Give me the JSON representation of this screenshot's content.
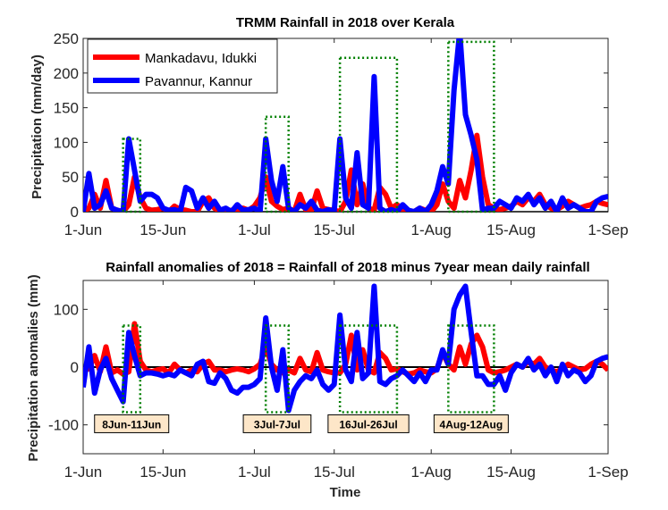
{
  "chart_data": [
    {
      "type": "line",
      "title": "TRMM Rainfall in 2018 over Kerala",
      "xlabel": "",
      "ylabel": "Precipitation (mm/day)",
      "x_start_day": 0,
      "x_end_day": 92,
      "xticks": [
        {
          "day": 0,
          "label": "1-Jun"
        },
        {
          "day": 14,
          "label": "15-Jun"
        },
        {
          "day": 30,
          "label": "1-Jul"
        },
        {
          "day": 44,
          "label": "15-Jul"
        },
        {
          "day": 61,
          "label": "1-Aug"
        },
        {
          "day": 75,
          "label": "15-Aug"
        },
        {
          "day": 92,
          "label": "1-Sep"
        }
      ],
      "yticks": [
        0,
        50,
        100,
        150,
        200,
        250
      ],
      "ylim": [
        0,
        250
      ],
      "legend": "top-left",
      "series": [
        {
          "name": "Mankadavu, Idukki",
          "color": "#ff0000",
          "values": [
            0,
            5,
            25,
            5,
            45,
            5,
            2,
            0,
            10,
            50,
            20,
            5,
            2,
            3,
            5,
            0,
            8,
            3,
            2,
            0,
            0,
            15,
            20,
            5,
            0,
            0,
            2,
            3,
            5,
            2,
            8,
            20,
            50,
            15,
            8,
            3,
            5,
            0,
            25,
            3,
            2,
            30,
            5,
            3,
            2,
            0,
            15,
            60,
            10,
            40,
            5,
            2,
            35,
            25,
            5,
            10,
            3,
            0,
            0,
            5,
            2,
            0,
            10,
            40,
            15,
            5,
            45,
            20,
            60,
            110,
            50,
            10,
            5,
            3,
            5,
            8,
            15,
            10,
            20,
            15,
            25,
            10,
            5,
            3,
            8,
            15,
            10,
            5,
            8,
            10,
            15,
            12,
            10
          ]
        },
        {
          "name": "Pavannur, Kannur",
          "color": "#0000ff",
          "values": [
            0,
            55,
            5,
            10,
            30,
            5,
            2,
            0,
            105,
            60,
            15,
            25,
            25,
            20,
            5,
            2,
            3,
            0,
            35,
            30,
            5,
            20,
            5,
            15,
            2,
            5,
            0,
            10,
            2,
            3,
            5,
            0,
            105,
            45,
            15,
            65,
            5,
            0,
            10,
            5,
            15,
            2,
            0,
            3,
            0,
            105,
            20,
            5,
            85,
            10,
            5,
            195,
            5,
            0,
            3,
            0,
            10,
            2,
            0,
            5,
            0,
            10,
            30,
            65,
            40,
            175,
            260,
            140,
            110,
            75,
            2,
            5,
            5,
            15,
            10,
            5,
            20,
            15,
            25,
            10,
            20,
            5,
            15,
            0,
            20,
            5,
            10,
            5,
            0,
            0,
            15,
            20,
            22
          ]
        }
      ],
      "event_boxes": [
        {
          "start_day": 7,
          "end_day": 10,
          "ymin": 0,
          "ymax": 105
        },
        {
          "start_day": 32,
          "end_day": 36,
          "ymin": 0,
          "ymax": 137
        },
        {
          "start_day": 45,
          "end_day": 55,
          "ymin": 0,
          "ymax": 222
        },
        {
          "start_day": 64,
          "end_day": 72,
          "ymin": 0,
          "ymax": 245
        }
      ]
    },
    {
      "type": "line",
      "title": "Rainfall anomalies of 2018 = Rainfall of 2018 minus 7year mean daily rainfall",
      "xlabel": "Time",
      "ylabel": "Precipitation anomalies (mm)",
      "x_start_day": 0,
      "x_end_day": 92,
      "xticks": [
        {
          "day": 0,
          "label": "1-Jun"
        },
        {
          "day": 14,
          "label": "15-Jun"
        },
        {
          "day": 30,
          "label": "1-Jul"
        },
        {
          "day": 44,
          "label": "15-Jul"
        },
        {
          "day": 61,
          "label": "1-Aug"
        },
        {
          "day": 75,
          "label": "15-Aug"
        },
        {
          "day": 92,
          "label": "1-Sep"
        }
      ],
      "yticks": [
        -100,
        0,
        100
      ],
      "ylim": [
        -150,
        150
      ],
      "reference_line": 0,
      "series": [
        {
          "name": "Mankadavu, Idukki",
          "color": "#ff0000",
          "values": [
            -5,
            -3,
            20,
            -8,
            35,
            -10,
            -5,
            -12,
            -8,
            75,
            10,
            -5,
            -8,
            -5,
            -3,
            -10,
            5,
            -5,
            -10,
            -5,
            -8,
            5,
            10,
            -5,
            -5,
            -8,
            -5,
            -3,
            -5,
            -8,
            -3,
            5,
            35,
            5,
            -5,
            -10,
            -5,
            -10,
            15,
            -5,
            -8,
            25,
            -5,
            -8,
            -10,
            -10,
            5,
            55,
            -5,
            30,
            -5,
            -10,
            25,
            15,
            -5,
            -3,
            -8,
            -12,
            -10,
            -5,
            -8,
            -10,
            -3,
            25,
            5,
            -5,
            35,
            5,
            40,
            55,
            35,
            -5,
            -10,
            -8,
            -5,
            0,
            5,
            0,
            10,
            5,
            15,
            0,
            -5,
            -8,
            -3,
            5,
            0,
            -5,
            -3,
            5,
            10,
            5,
            -5
          ]
        },
        {
          "name": "Pavannur, Kannur",
          "color": "#0000ff",
          "values": [
            -35,
            35,
            -45,
            -5,
            15,
            -20,
            -40,
            -60,
            60,
            20,
            -15,
            -10,
            -10,
            -12,
            -15,
            -12,
            -15,
            -5,
            -10,
            -15,
            5,
            10,
            -25,
            -28,
            -10,
            -20,
            -40,
            -45,
            -35,
            -35,
            -30,
            -20,
            85,
            0,
            -40,
            30,
            -75,
            -40,
            -25,
            -15,
            -20,
            -5,
            -30,
            -40,
            -30,
            90,
            -5,
            -25,
            60,
            -20,
            -10,
            140,
            -25,
            -30,
            -20,
            -15,
            -5,
            -15,
            -25,
            -10,
            -25,
            -5,
            -5,
            30,
            5,
            100,
            125,
            140,
            60,
            -15,
            -15,
            -30,
            -30,
            -15,
            -40,
            -10,
            5,
            0,
            15,
            -5,
            5,
            -15,
            0,
            -25,
            5,
            -15,
            -5,
            -10,
            -25,
            -15,
            10,
            15,
            18
          ]
        }
      ],
      "event_boxes": [
        {
          "start_day": 7,
          "end_day": 10,
          "ymin": -78,
          "ymax": 72,
          "label": "8Jun-11Jun"
        },
        {
          "start_day": 32,
          "end_day": 36,
          "ymin": -78,
          "ymax": 72,
          "label": "3Jul-7Jul"
        },
        {
          "start_day": 45,
          "end_day": 55,
          "ymin": -78,
          "ymax": 72,
          "label": "16Jul-26Jul"
        },
        {
          "start_day": 64,
          "end_day": 72,
          "ymin": -78,
          "ymax": 72,
          "label": "4Aug-12Aug"
        }
      ]
    }
  ],
  "colors": {
    "red_series": "#ff0000",
    "blue_series": "#0000ff",
    "event_box": "#007f00",
    "label_fill": "#fde6c8"
  }
}
